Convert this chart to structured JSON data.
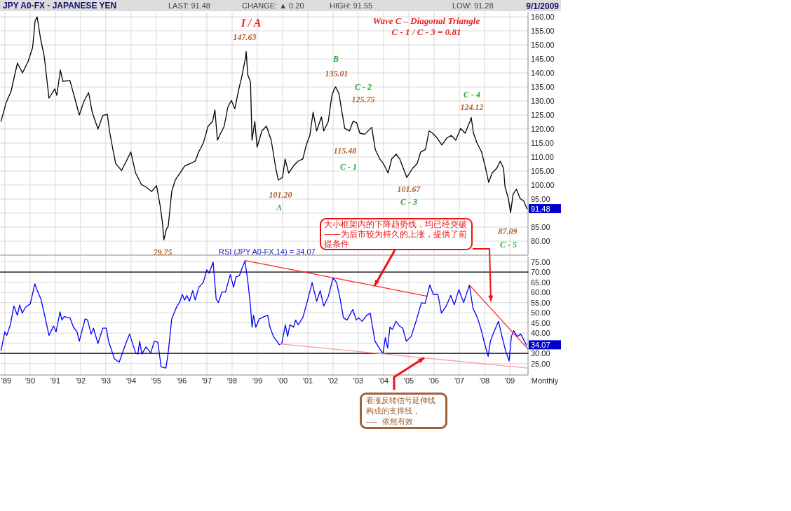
{
  "chart_data": [
    {
      "type": "line",
      "title": "JPY A0-FX - JAPANESE YEN",
      "annotations": [
        "LAST: 91.48",
        "CHANGE: ▲ 0.20",
        "HIGH: 91.55",
        "LOW: 91.28",
        "9/1/2009",
        "Wave C – Diagonal Triangle",
        "C - 1 / C - 3  =  0.81",
        "I / A",
        "147.63",
        "B",
        "135.01",
        "C - 2",
        "125.75",
        "C - 4",
        "124.12",
        "115.48",
        "C - 1",
        "101.20",
        "A",
        "101.67",
        "C - 3",
        "87.09",
        "C - 5",
        "79.75",
        {
          "text": "91.48",
          "x": 2009.68,
          "y": 91.48
        }
      ],
      "xlim": [
        1988.81,
        2009.72
      ],
      "ylim": [
        75,
        161.75
      ],
      "xticks": [
        {
          "value": 1989,
          "label": null
        },
        {
          "value": 1990,
          "label": null
        },
        {
          "value": 1991,
          "label": null
        },
        {
          "value": 1992,
          "label": null
        },
        {
          "value": 1993,
          "label": null
        },
        {
          "value": 1994,
          "label": null
        },
        {
          "value": 1995,
          "label": null
        },
        {
          "value": 1996,
          "label": null
        },
        {
          "value": 1997,
          "label": null
        },
        {
          "value": 1998,
          "label": null
        },
        {
          "value": 1999,
          "label": null
        },
        {
          "value": 2000,
          "label": null
        },
        {
          "value": 2001,
          "label": null
        },
        {
          "value": 2002,
          "label": null
        },
        {
          "value": 2003,
          "label": null
        },
        {
          "value": 2004,
          "label": null
        },
        {
          "value": 2005,
          "label": null
        },
        {
          "value": 2006,
          "label": null
        },
        {
          "value": 2007,
          "label": null
        },
        {
          "value": 2008,
          "label": null
        },
        {
          "value": 2009,
          "label": null
        }
      ],
      "yticks": [
        {
          "value": 80,
          "label": "80.00"
        },
        {
          "value": 85,
          "label": "85.00"
        },
        {
          "value": 90,
          "label": null
        },
        {
          "value": 95,
          "label": "95.00"
        },
        {
          "value": 100,
          "label": "100.00"
        },
        {
          "value": 105,
          "label": "105.00"
        },
        {
          "value": 110,
          "label": "110.00"
        },
        {
          "value": 115,
          "label": "115.00"
        },
        {
          "value": 120,
          "label": "120.00"
        },
        {
          "value": 125,
          "label": "125.00"
        },
        {
          "value": 130,
          "label": "130.00"
        },
        {
          "value": 135,
          "label": "135.00"
        },
        {
          "value": 140,
          "label": "140.00"
        },
        {
          "value": 145,
          "label": "145.00"
        },
        {
          "value": 150,
          "label": "150.00"
        },
        {
          "value": 155,
          "label": "155.00"
        },
        {
          "value": 160,
          "label": "160.00"
        }
      ],
      "tick_labels": "y",
      "grid": true,
      "series": [
        {
          "color": "#000000",
          "x": [
            1988.85,
            1989.05,
            1989.25,
            1989.5,
            1989.7,
            1989.92,
            1990.1,
            1990.2,
            1990.28,
            1990.42,
            1990.56,
            1990.75,
            1990.98,
            1991.06,
            1991.2,
            1991.3,
            1991.58,
            1991.77,
            1991.95,
            1992.14,
            1992.32,
            1992.46,
            1992.69,
            1992.88,
            1993.06,
            1993.16,
            1993.3,
            1993.39,
            1993.62,
            1993.81,
            1993.99,
            1994.18,
            1994.41,
            1994.59,
            1994.82,
            1995.01,
            1995.15,
            1995.24,
            1995.3,
            1995.4,
            1995.47,
            1995.61,
            1995.75,
            1995.94,
            1996.12,
            1996.35,
            1996.54,
            1996.68,
            1996.87,
            1997.05,
            1997.23,
            1997.32,
            1997.42,
            1997.55,
            1997.69,
            1997.83,
            1997.97,
            1998.11,
            1998.25,
            1998.39,
            1998.53,
            1998.56,
            1998.62,
            1998.73,
            1998.79,
            1998.9,
            1998.99,
            1999.18,
            1999.36,
            1999.55,
            1999.73,
            1999.83,
            2000.0,
            2000.1,
            2000.24,
            2000.43,
            2000.61,
            2000.8,
            2000.94,
            2001.08,
            2001.21,
            2001.35,
            2001.54,
            2001.63,
            2001.81,
            2001.95,
            2002.05,
            2002.1,
            2002.23,
            2002.32,
            2002.46,
            2002.65,
            2002.79,
            2002.93,
            2003.06,
            2003.25,
            2003.53,
            2003.67,
            2003.85,
            2003.99,
            2004.18,
            2004.32,
            2004.5,
            2004.64,
            2004.78,
            2004.92,
            2005.15,
            2005.33,
            2005.47,
            2005.66,
            2005.8,
            2005.94,
            2006.12,
            2006.31,
            2006.5,
            2006.68,
            2006.86,
            2007.05,
            2007.23,
            2007.42,
            2007.47,
            2007.56,
            2007.69,
            2007.88,
            2008.02,
            2008.16,
            2008.3,
            2008.48,
            2008.62,
            2008.75,
            2008.81,
            2008.94,
            2009.03,
            2009.13,
            2009.26,
            2009.41,
            2009.55,
            2009.68
          ],
          "values": [
            122.7,
            129.3,
            133.5,
            143.5,
            140,
            144,
            149,
            158.5,
            160,
            152,
            146,
            131,
            134.3,
            132,
            141,
            137,
            137.3,
            131,
            125,
            130,
            133,
            126,
            120,
            124.8,
            125.2,
            118.5,
            111.8,
            107.7,
            105.2,
            108.5,
            111.8,
            104.3,
            100.2,
            99.3,
            97.7,
            99.8,
            92.7,
            86.8,
            80.5,
            84.3,
            85.2,
            97.7,
            101.8,
            104.3,
            106.8,
            107.7,
            108.5,
            111.8,
            115.2,
            121,
            122.7,
            126.8,
            116,
            118.5,
            121,
            127.7,
            130.2,
            127.2,
            133.5,
            138.9,
            145.2,
            147.6,
            139.3,
            136.8,
            116,
            122.7,
            113.5,
            119.3,
            121,
            116,
            106,
            101.8,
            102.7,
            109.3,
            104.3,
            106.8,
            108.5,
            109.3,
            114.3,
            117.7,
            126,
            119.3,
            124.3,
            119.3,
            122.7,
            131.8,
            134.3,
            135,
            132.7,
            127.7,
            120.2,
            119.3,
            122.7,
            122.3,
            118.5,
            118.1,
            120.6,
            112.7,
            109.3,
            107.7,
            104.3,
            109.3,
            111,
            109.3,
            106,
            102.7,
            106,
            107.7,
            111.8,
            112.7,
            119.3,
            118.5,
            116.8,
            114.3,
            116.8,
            117.7,
            116,
            120.2,
            118.5,
            122.7,
            124.1,
            118.5,
            115.2,
            111.8,
            106.8,
            101,
            104.3,
            106,
            108.5,
            106,
            99.3,
            95.2,
            90.2,
            96.8,
            98.5,
            95.2,
            94.3,
            91.48
          ]
        }
      ]
    },
    {
      "type": "line",
      "title": "RSI (JPY A0-FX,14) = 34.07",
      "xlabel": "Monthly",
      "annotations": [
        {
          "text": "大小框架内的下降趋势线，均已经突破——为后市较为持久的上涨，提供了前提条件",
          "x": 2003.64,
          "y": 63.2
        },
        {
          "text": "看涨反转信号延伸线构成的支撑线，\n----  依然有效",
          "x": 2005.61,
          "y": 27.8
        },
        {
          "text": "34.07",
          "x": 2009.66,
          "y": 34.07
        }
      ],
      "xlim": [
        1988.81,
        2009.72
      ],
      "ylim": [
        19.4,
        77.6
      ],
      "xticks": [
        {
          "value": 1989,
          "label": "'89"
        },
        {
          "value": 1990,
          "label": "'90"
        },
        {
          "value": 1991,
          "label": "'91"
        },
        {
          "value": 1992,
          "label": "'92"
        },
        {
          "value": 1993,
          "label": "'93"
        },
        {
          "value": 1994,
          "label": "'94"
        },
        {
          "value": 1995,
          "label": "'95"
        },
        {
          "value": 1996,
          "label": "'96"
        },
        {
          "value": 1997,
          "label": "'97"
        },
        {
          "value": 1998,
          "label": "'98"
        },
        {
          "value": 1999,
          "label": "'99"
        },
        {
          "value": 2000,
          "label": "'00"
        },
        {
          "value": 2001,
          "label": "'01"
        },
        {
          "value": 2002,
          "label": "'02"
        },
        {
          "value": 2003,
          "label": "'03"
        },
        {
          "value": 2004,
          "label": "'04"
        },
        {
          "value": 2005,
          "label": "'05"
        },
        {
          "value": 2006,
          "label": "'06"
        },
        {
          "value": 2007,
          "label": "'07"
        },
        {
          "value": 2008,
          "label": "'08"
        },
        {
          "value": 2009,
          "label": "'09"
        }
      ],
      "yticks": [
        {
          "value": 25,
          "label": "25.00"
        },
        {
          "value": 30,
          "label": "30.00"
        },
        {
          "value": 35,
          "label": null
        },
        {
          "value": 40,
          "label": "40.00"
        },
        {
          "value": 45,
          "label": "45.00"
        },
        {
          "value": 50,
          "label": "50.00"
        },
        {
          "value": 55,
          "label": "55.00"
        },
        {
          "value": 60,
          "label": "60.00"
        },
        {
          "value": 65,
          "label": "65.00"
        },
        {
          "value": 70,
          "label": "70.00"
        },
        {
          "value": 75,
          "label": "75.00"
        }
      ],
      "grid": true,
      "series": [
        {
          "type": "line",
          "color": "#000000",
          "x": [
            1988.81,
            2009.72
          ],
          "values": [
            70,
            70
          ]
        },
        {
          "type": "line",
          "color": "#000000",
          "x": [
            1988.81,
            2009.72
          ],
          "values": [
            30,
            30
          ]
        },
        {
          "color": "#0000ff",
          "x": [
            1988.85,
            1989.0,
            1989.08,
            1989.22,
            1989.36,
            1989.5,
            1989.59,
            1989.69,
            1989.82,
            1990.01,
            1990.19,
            1990.29,
            1990.43,
            1990.56,
            1990.75,
            1990.93,
            1991.03,
            1991.19,
            1991.26,
            1991.35,
            1991.58,
            1991.72,
            1991.86,
            1991.95,
            1992.18,
            1992.28,
            1992.42,
            1992.51,
            1992.69,
            1992.88,
            1993.02,
            1993.11,
            1993.34,
            1993.53,
            1993.76,
            1993.94,
            1994.18,
            1994.27,
            1994.34,
            1994.43,
            1994.59,
            1994.78,
            1994.92,
            1995.06,
            1995.19,
            1995.38,
            1995.47,
            1995.61,
            1995.8,
            1995.94,
            1996.03,
            1996.12,
            1996.21,
            1996.31,
            1996.44,
            1996.54,
            1996.68,
            1996.86,
            1997.0,
            1997.09,
            1997.25,
            1997.37,
            1997.46,
            1997.6,
            1997.74,
            1997.93,
            1998.06,
            1998.16,
            1998.29,
            1998.39,
            1998.51,
            1998.62,
            1998.73,
            1998.79,
            1998.85,
            1998.94,
            1999.08,
            1999.27,
            1999.41,
            1999.5,
            1999.64,
            1999.87,
            1999.97,
            2000.11,
            2000.2,
            2000.29,
            2000.43,
            2000.52,
            2000.61,
            2000.8,
            2000.98,
            2001.17,
            2001.26,
            2001.35,
            2001.49,
            2001.63,
            2001.81,
            2002.0,
            2002.14,
            2002.28,
            2002.41,
            2002.55,
            2002.78,
            2002.92,
            2003.01,
            2003.15,
            2003.33,
            2003.47,
            2003.66,
            2003.89,
            2003.98,
            2004.07,
            2004.16,
            2004.25,
            2004.35,
            2004.49,
            2004.63,
            2004.76,
            2004.9,
            2005.09,
            2005.27,
            2005.5,
            2005.64,
            2005.83,
            2005.97,
            2006.15,
            2006.29,
            2006.48,
            2006.66,
            2006.8,
            2006.98,
            2007.17,
            2007.4,
            2007.54,
            2007.72,
            2007.86,
            2008.0,
            2008.14,
            2008.23,
            2008.37,
            2008.55,
            2008.69,
            2008.83,
            2008.97,
            2009.06,
            2009.15,
            2009.29,
            2009.43,
            2009.66
          ],
          "values": [
            31.4,
            40.6,
            38.9,
            44.1,
            53.3,
            48.7,
            53.9,
            49.8,
            52.7,
            54.4,
            64.2,
            60.8,
            56.7,
            49.8,
            38.9,
            43.5,
            40.6,
            50.4,
            46.4,
            48.1,
            47.5,
            42.9,
            40.6,
            36.0,
            47.0,
            46.4,
            39.5,
            42.4,
            34.9,
            42.4,
            42.4,
            36.0,
            27.4,
            25.7,
            33.8,
            39.5,
            30.3,
            29.7,
            36.0,
            29.7,
            33.2,
            30.3,
            36.0,
            35.5,
            23.4,
            22.8,
            30.3,
            47.0,
            52.7,
            55.6,
            59.0,
            56.2,
            58.5,
            55.6,
            60.8,
            56.2,
            62.5,
            64.8,
            71.1,
            69.4,
            74.9,
            56.7,
            55.0,
            60.2,
            60.2,
            68.8,
            62.5,
            67.7,
            68.2,
            71.7,
            75.4,
            65.9,
            53.3,
            42.9,
            48.7,
            42.9,
            47.0,
            48.1,
            48.7,
            42.9,
            38.3,
            34.3,
            34.9,
            44.1,
            38.3,
            44.1,
            42.9,
            46.4,
            44.1,
            47.5,
            55.6,
            64.8,
            60.2,
            55.6,
            60.8,
            53.3,
            57.9,
            67.1,
            64.8,
            56.7,
            47.5,
            46.4,
            51.6,
            46.4,
            47.5,
            45.8,
            48.7,
            49.8,
            36.0,
            31.4,
            30.3,
            37.8,
            32.6,
            42.9,
            41.8,
            45.8,
            43.5,
            42.4,
            36.0,
            38.3,
            45.2,
            55.0,
            54.4,
            63.6,
            59.0,
            59.0,
            49.8,
            53.3,
            58.5,
            53.9,
            61.3,
            55.0,
            63.6,
            52.1,
            47.5,
            41.8,
            34.9,
            28.6,
            36.0,
            40.6,
            45.8,
            38.3,
            31.4,
            26.3,
            38.3,
            41.2,
            38.3,
            39.5,
            34.07
          ]
        },
        {
          "type": "line",
          "color": "#ff2222",
          "x": [
            1998.51,
            2005.73
          ],
          "values": [
            75.7,
            58.1
          ]
        },
        {
          "type": "line",
          "color": "#ff2222",
          "x": [
            2007.4,
            2009.72
          ],
          "values": [
            63.6,
            32.1
          ]
        },
        {
          "type": "line",
          "color": "#ff9999",
          "x": [
            1999.9,
            2009.72
          ],
          "values": [
            34.7,
            22.8
          ]
        }
      ]
    }
  ]
}
